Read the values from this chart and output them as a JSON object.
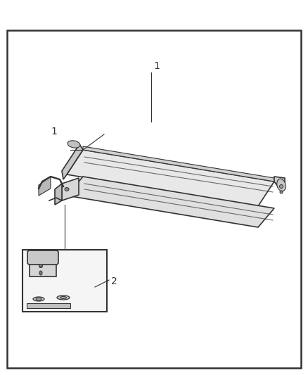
{
  "title": "",
  "background_color": "#ffffff",
  "border_color": "#333333",
  "line_color": "#333333",
  "label_color": "#333333",
  "label1": "1",
  "label2": "2",
  "figsize": [
    4.38,
    5.33
  ],
  "dpi": 100
}
